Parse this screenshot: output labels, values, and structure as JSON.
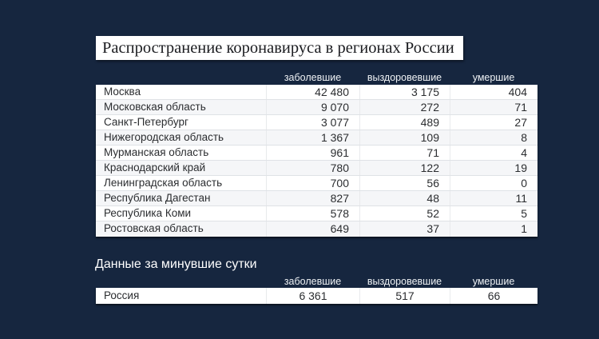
{
  "colors": {
    "background": "#16263f",
    "panel": "#ffffff",
    "row_alt": "#f5f6f8",
    "grid_line": "#dfe2e6",
    "header_text": "#eef1f4",
    "body_text": "#2b2d30"
  },
  "chart_data": {
    "type": "table",
    "title": "Распространение коронавируса в регионах России",
    "header_columns": [
      "заболевшие",
      "выздоровевшие",
      "умершие"
    ],
    "regions": [
      [
        "Москва",
        "42 480",
        "3 175",
        "404"
      ],
      [
        "Московская область",
        "9 070",
        "272",
        "71"
      ],
      [
        "Санкт-Петербург",
        "3 077",
        "489",
        "27"
      ],
      [
        "Нижегородская область",
        "1 367",
        "109",
        "8"
      ],
      [
        "Мурманская область",
        "961",
        "71",
        "4"
      ],
      [
        "Краснодарский край",
        "780",
        "122",
        "19"
      ],
      [
        "Ленинградская область",
        "700",
        "56",
        "0"
      ],
      [
        "Республика Дагестан",
        "827",
        "48",
        "11"
      ],
      [
        "Республика Коми",
        "578",
        "52",
        "5"
      ],
      [
        "Ростовская область",
        "649",
        "37",
        "1"
      ]
    ],
    "daily_label": "Данные за минувшие сутки",
    "daily_columns": [
      "заболевшие",
      "выздоровевшие",
      "умершие"
    ],
    "daily_rows": [
      [
        "Россия",
        "6 361",
        "517",
        "66"
      ]
    ]
  }
}
